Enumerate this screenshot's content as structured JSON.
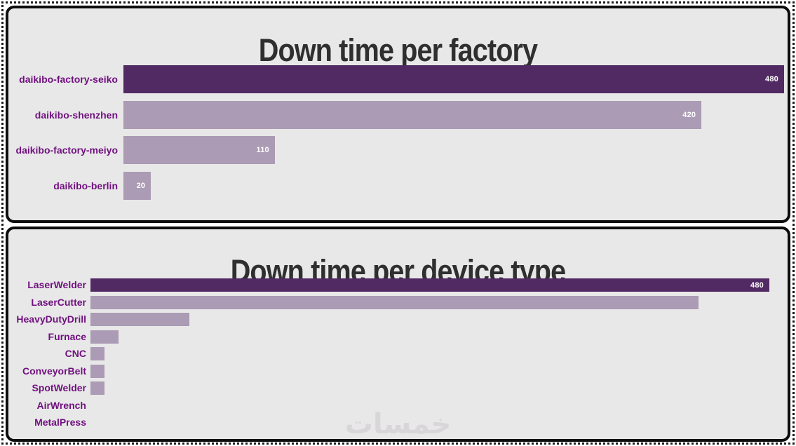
{
  "page": {
    "background": "#ffffff",
    "panel_background": "#e8e8e8",
    "panel_border_color": "#0d0d0d",
    "outer_border_style": "dotted"
  },
  "colors": {
    "bar_highlight": "#522a63",
    "bar_normal": "#ab9bb4",
    "category_label": "#70107f",
    "title": "#2f2f2f",
    "value_label": "#ffffff"
  },
  "watermark": {
    "text": "خمسات",
    "color": "#d9d6d9"
  },
  "chart_data": [
    {
      "type": "bar",
      "orientation": "horizontal",
      "title": "Down time per factory",
      "categories": [
        "daikibo-factory-seiko",
        "daikibo-shenzhen",
        "daikibo-factory-meiyo",
        "daikibo-berlin"
      ],
      "values": [
        480,
        420,
        110,
        20
      ],
      "value_labels_shown": [
        true,
        true,
        true,
        true
      ],
      "highlight_index": 0,
      "xlim": [
        0,
        480
      ],
      "grid": false,
      "legend": "none"
    },
    {
      "type": "bar",
      "orientation": "horizontal",
      "title": "Down time per device type",
      "categories": [
        "LaserWelder",
        "LaserCutter",
        "HeavyDutyDrill",
        "Furnace",
        "CNC",
        "ConveyorBelt",
        "SpotWelder",
        "AirWrench",
        "MetalPress"
      ],
      "values": [
        480,
        430,
        70,
        20,
        10,
        10,
        10,
        0,
        0
      ],
      "value_labels_shown": [
        true,
        false,
        false,
        false,
        false,
        false,
        false,
        false,
        false
      ],
      "highlight_index": 0,
      "xlim": [
        0,
        480
      ],
      "grid": false,
      "legend": "none"
    }
  ]
}
